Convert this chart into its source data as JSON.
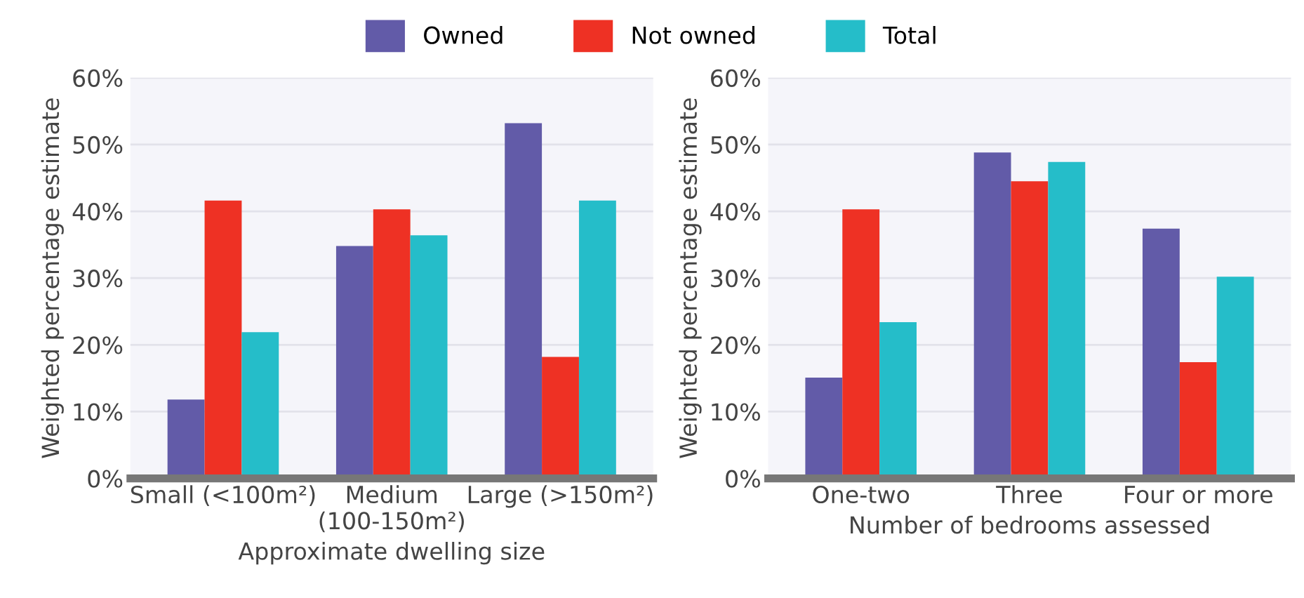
{
  "chart_data": [
    {
      "type": "bar",
      "xlabel": "Approximate dwelling size",
      "ylabel": "Weighted percentage estimate",
      "categories": [
        "Small (<100m²)",
        "Medium\n(100-150m²)",
        "Large (>150m²)"
      ],
      "series": [
        {
          "name": "Owned",
          "color": "#625ba8",
          "values": [
            11.8,
            34.8,
            53.2
          ]
        },
        {
          "name": "Not owned",
          "color": "#ee3124",
          "values": [
            41.6,
            40.3,
            18.2
          ]
        },
        {
          "name": "Total",
          "color": "#25bdc9",
          "values": [
            21.9,
            36.4,
            41.6
          ]
        }
      ],
      "ylim": [
        0,
        60
      ],
      "yticks": [
        {
          "value": 0,
          "label": "0%"
        },
        {
          "value": 10,
          "label": "10%"
        },
        {
          "value": 20,
          "label": "20%"
        },
        {
          "value": 30,
          "label": "30%"
        },
        {
          "value": 40,
          "label": "40%"
        },
        {
          "value": 50,
          "label": "50%"
        },
        {
          "value": 60,
          "label": "60%"
        }
      ],
      "grid": "y",
      "legend": "top"
    },
    {
      "type": "bar",
      "xlabel": "Number of bedrooms assessed",
      "ylabel": "Weighted percentage estimate",
      "categories": [
        "One-two",
        "Three",
        "Four or more"
      ],
      "series": [
        {
          "color": "#625ba8",
          "values": [
            15.1,
            48.8,
            37.4
          ]
        },
        {
          "color": "#ee3124",
          "values": [
            40.3,
            44.5,
            17.4
          ]
        },
        {
          "color": "#25bdc9",
          "values": [
            23.4,
            47.4,
            30.2
          ]
        }
      ],
      "ylim": [
        0,
        60
      ],
      "yticks": [
        {
          "value": 0,
          "label": "0%"
        },
        {
          "value": 10,
          "label": "10%"
        },
        {
          "value": 20,
          "label": "20%"
        },
        {
          "value": 30,
          "label": "30%"
        },
        {
          "value": 40,
          "label": "40%"
        },
        {
          "value": 50,
          "label": "50%"
        },
        {
          "value": 60,
          "label": "60%"
        }
      ],
      "grid": "y"
    }
  ]
}
